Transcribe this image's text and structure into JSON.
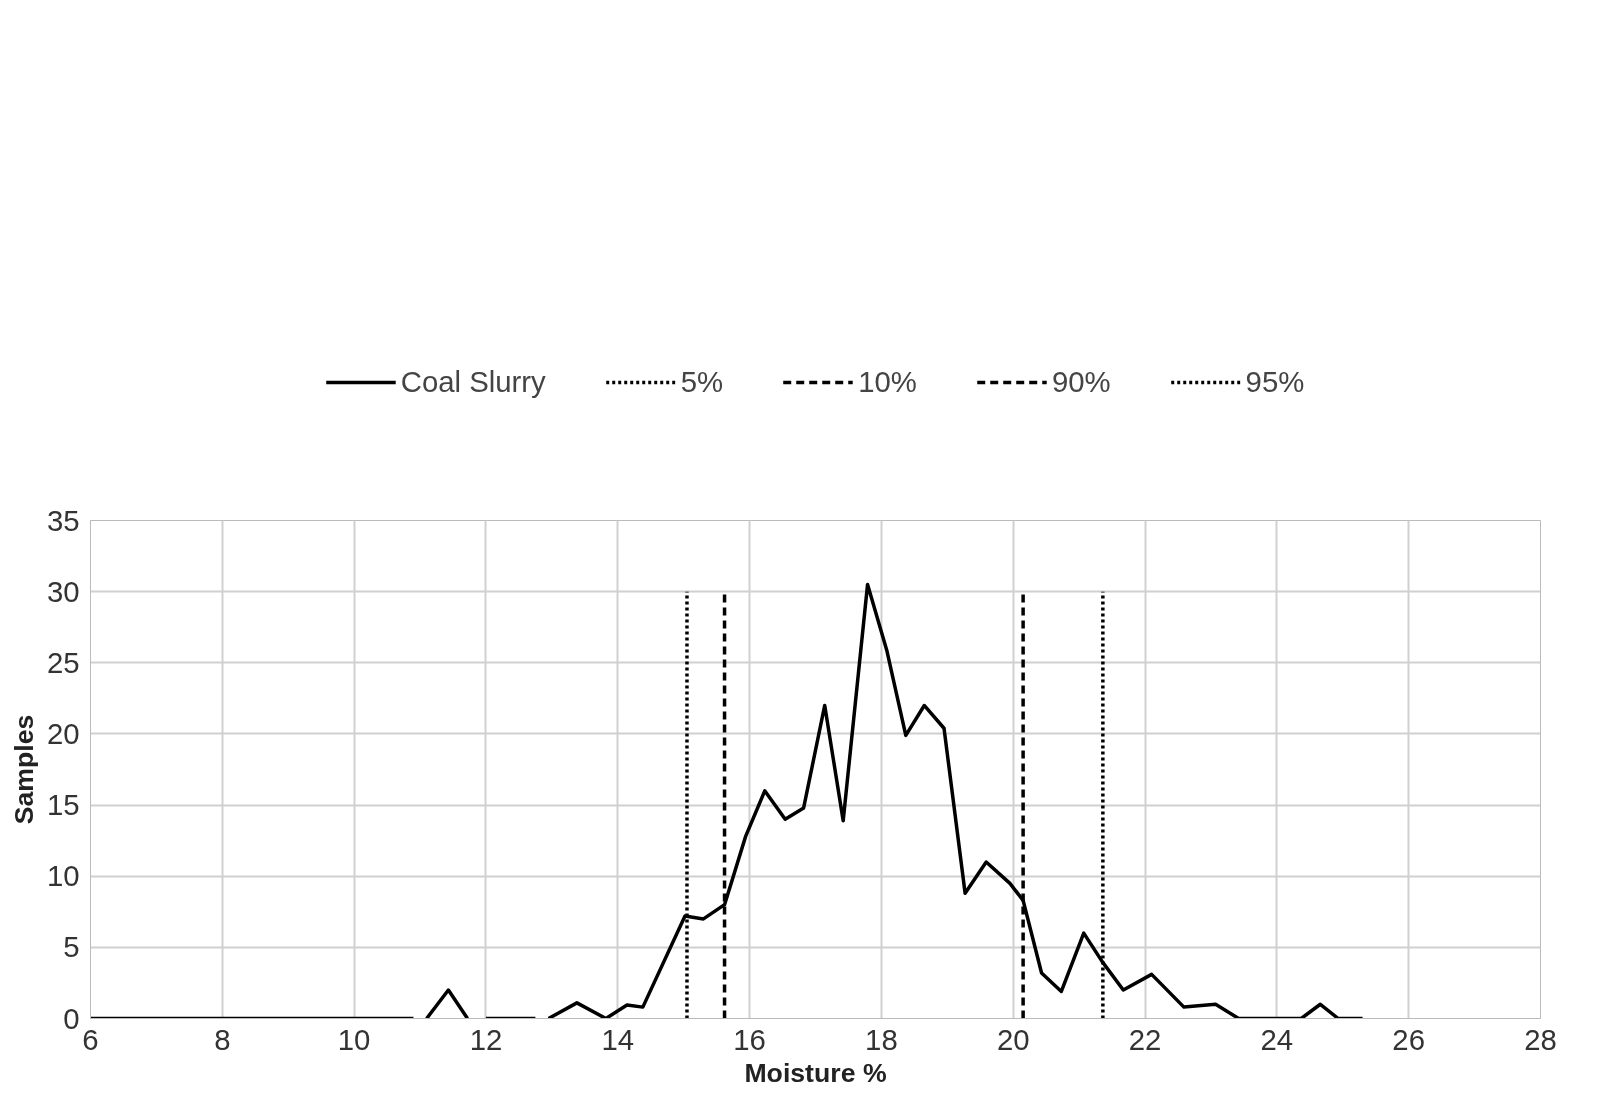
{
  "chart_data": {
    "type": "line",
    "xlabel": "Moisture %",
    "ylabel": "Samples",
    "xlim": [
      6,
      28
    ],
    "xticks": [
      6,
      8,
      10,
      12,
      14,
      16,
      18,
      20,
      22,
      24,
      26,
      28
    ],
    "ylim": [
      0,
      35
    ],
    "yticks": [
      0,
      5,
      10,
      15,
      20,
      25,
      30,
      35
    ],
    "grid": true,
    "legend": "top",
    "series": [
      {
        "name": "Coal Slurry",
        "color": "#000000",
        "line_style": "solid",
        "x": [
          6,
          10.9,
          11.0,
          11.1,
          11.43,
          11.72,
          11.85,
          12.0,
          12.75,
          12.85,
          12.95,
          13.38,
          13.82,
          14.14,
          14.38,
          15.02,
          15.3,
          15.62,
          15.94,
          16.23,
          16.54,
          16.82,
          17.14,
          17.42,
          17.79,
          18.08,
          18.37,
          18.65,
          18.95,
          19.27,
          19.59,
          19.95,
          20.15,
          20.43,
          20.73,
          21.07,
          21.35,
          21.67,
          22.1,
          22.59,
          23.07,
          23.42,
          24.18,
          24.37,
          24.66,
          24.93,
          25.3
        ],
        "values": [
          0,
          0,
          null,
          0,
          2,
          0,
          null,
          0,
          0,
          null,
          0,
          1.1,
          0,
          0.95,
          0.8,
          7.2,
          7,
          8,
          12.8,
          16,
          14,
          14.8,
          22,
          13.9,
          30.5,
          25.9,
          19.9,
          22,
          20.4,
          8.8,
          11,
          9.5,
          8.3,
          3.2,
          1.9,
          6,
          4,
          2,
          3.1,
          0.8,
          1,
          0,
          0,
          0,
          1,
          0,
          0
        ]
      },
      {
        "name": "5%",
        "color": "#000000",
        "line_style": "dotted",
        "x": [
          15.05,
          15.05
        ],
        "values": [
          0,
          30
        ]
      },
      {
        "name": "10%",
        "color": "#000000",
        "line_style": "dashed",
        "x": [
          15.62,
          15.62
        ],
        "values": [
          0,
          30
        ]
      },
      {
        "name": "90%",
        "color": "#000000",
        "line_style": "dashed",
        "x": [
          20.15,
          20.15
        ],
        "values": [
          0,
          30
        ]
      },
      {
        "name": "95%",
        "color": "#000000",
        "line_style": "dotted",
        "x": [
          21.36,
          21.36
        ],
        "values": [
          0,
          30
        ]
      }
    ]
  }
}
